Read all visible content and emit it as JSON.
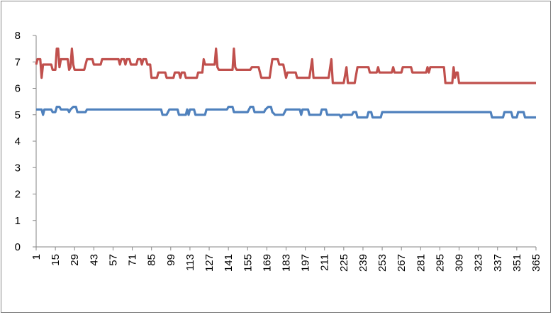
{
  "chart_data": {
    "type": "line",
    "title": "",
    "xlabel": "",
    "ylabel": "",
    "xlim": [
      1,
      365
    ],
    "ylim": [
      0,
      8
    ],
    "y_ticks": [
      0,
      1,
      2,
      3,
      4,
      5,
      6,
      7,
      8
    ],
    "x_ticks": [
      1,
      15,
      29,
      43,
      57,
      71,
      85,
      99,
      113,
      127,
      141,
      155,
      169,
      183,
      197,
      211,
      225,
      239,
      253,
      267,
      281,
      295,
      309,
      323,
      337,
      351,
      365
    ],
    "grid": false,
    "legend": "none",
    "series": [
      {
        "color": "#4f81bd",
        "points": [
          [
            1,
            5.2
          ],
          [
            5,
            5.2
          ],
          [
            6,
            5.0
          ],
          [
            7,
            5.2
          ],
          [
            12,
            5.2
          ],
          [
            13,
            5.1
          ],
          [
            15,
            5.1
          ],
          [
            16,
            5.3
          ],
          [
            18,
            5.3
          ],
          [
            19,
            5.2
          ],
          [
            24,
            5.2
          ],
          [
            25,
            5.1
          ],
          [
            26,
            5.2
          ],
          [
            28,
            5.3
          ],
          [
            30,
            5.3
          ],
          [
            31,
            5.1
          ],
          [
            37,
            5.1
          ],
          [
            38,
            5.2
          ],
          [
            92,
            5.2
          ],
          [
            93,
            5.0
          ],
          [
            96,
            5.0
          ],
          [
            98,
            5.2
          ],
          [
            104,
            5.2
          ],
          [
            105,
            5.0
          ],
          [
            110,
            5.0
          ],
          [
            111,
            5.2
          ],
          [
            112,
            5.0
          ],
          [
            113,
            5.2
          ],
          [
            116,
            5.2
          ],
          [
            117,
            5.0
          ],
          [
            124,
            5.0
          ],
          [
            125,
            5.2
          ],
          [
            140,
            5.2
          ],
          [
            141,
            5.3
          ],
          [
            144,
            5.3
          ],
          [
            145,
            5.1
          ],
          [
            155,
            5.1
          ],
          [
            156,
            5.2
          ],
          [
            157,
            5.3
          ],
          [
            159,
            5.3
          ],
          [
            160,
            5.1
          ],
          [
            167,
            5.1
          ],
          [
            168,
            5.2
          ],
          [
            170,
            5.3
          ],
          [
            172,
            5.3
          ],
          [
            173,
            5.1
          ],
          [
            175,
            5.0
          ],
          [
            181,
            5.0
          ],
          [
            183,
            5.2
          ],
          [
            193,
            5.2
          ],
          [
            194,
            5.0
          ],
          [
            195,
            5.2
          ],
          [
            199,
            5.2
          ],
          [
            200,
            5.0
          ],
          [
            208,
            5.0
          ],
          [
            209,
            5.2
          ],
          [
            212,
            5.2
          ],
          [
            213,
            5.0
          ],
          [
            222,
            5.0
          ],
          [
            223,
            4.9
          ],
          [
            224,
            5.0
          ],
          [
            231,
            5.0
          ],
          [
            232,
            5.1
          ],
          [
            234,
            5.1
          ],
          [
            235,
            4.9
          ],
          [
            242,
            4.9
          ],
          [
            243,
            5.1
          ],
          [
            245,
            5.1
          ],
          [
            246,
            4.9
          ],
          [
            252,
            4.9
          ],
          [
            253,
            5.1
          ],
          [
            332,
            5.1
          ],
          [
            333,
            4.9
          ],
          [
            341,
            4.9
          ],
          [
            342,
            5.1
          ],
          [
            347,
            5.1
          ],
          [
            348,
            4.9
          ],
          [
            351,
            4.9
          ],
          [
            352,
            5.1
          ],
          [
            356,
            5.1
          ],
          [
            357,
            4.9
          ],
          [
            365,
            4.9
          ]
        ]
      },
      {
        "color": "#c0504d",
        "points": [
          [
            1,
            6.9
          ],
          [
            2,
            7.1
          ],
          [
            4,
            7.1
          ],
          [
            5,
            6.4
          ],
          [
            6,
            6.9
          ],
          [
            12,
            6.9
          ],
          [
            13,
            6.7
          ],
          [
            15,
            6.7
          ],
          [
            16,
            7.5
          ],
          [
            17,
            7.5
          ],
          [
            18,
            6.8
          ],
          [
            19,
            7.1
          ],
          [
            24,
            7.1
          ],
          [
            25,
            6.7
          ],
          [
            26,
            6.8
          ],
          [
            27,
            7.5
          ],
          [
            28,
            6.9
          ],
          [
            29,
            6.7
          ],
          [
            36,
            6.7
          ],
          [
            37,
            6.9
          ],
          [
            38,
            7.1
          ],
          [
            42,
            7.1
          ],
          [
            43,
            6.9
          ],
          [
            48,
            6.9
          ],
          [
            49,
            7.1
          ],
          [
            61,
            7.1
          ],
          [
            62,
            6.9
          ],
          [
            63,
            7.1
          ],
          [
            65,
            7.1
          ],
          [
            66,
            6.9
          ],
          [
            67,
            7.1
          ],
          [
            69,
            7.1
          ],
          [
            70,
            6.9
          ],
          [
            74,
            6.9
          ],
          [
            75,
            7.1
          ],
          [
            77,
            7.1
          ],
          [
            78,
            6.9
          ],
          [
            79,
            7.1
          ],
          [
            81,
            7.1
          ],
          [
            82,
            6.9
          ],
          [
            84,
            6.9
          ],
          [
            85,
            6.4
          ],
          [
            89,
            6.4
          ],
          [
            90,
            6.6
          ],
          [
            95,
            6.6
          ],
          [
            96,
            6.4
          ],
          [
            101,
            6.4
          ],
          [
            102,
            6.6
          ],
          [
            105,
            6.6
          ],
          [
            106,
            6.4
          ],
          [
            107,
            6.6
          ],
          [
            109,
            6.6
          ],
          [
            110,
            6.4
          ],
          [
            118,
            6.4
          ],
          [
            119,
            6.6
          ],
          [
            122,
            6.6
          ],
          [
            123,
            7.1
          ],
          [
            124,
            6.9
          ],
          [
            131,
            6.9
          ],
          [
            132,
            7.5
          ],
          [
            133,
            6.8
          ],
          [
            134,
            6.7
          ],
          [
            144,
            6.7
          ],
          [
            145,
            7.5
          ],
          [
            146,
            6.8
          ],
          [
            147,
            6.7
          ],
          [
            157,
            6.7
          ],
          [
            158,
            6.8
          ],
          [
            163,
            6.8
          ],
          [
            165,
            6.4
          ],
          [
            171,
            6.4
          ],
          [
            173,
            7.1
          ],
          [
            177,
            7.1
          ],
          [
            178,
            6.9
          ],
          [
            181,
            6.9
          ],
          [
            183,
            6.4
          ],
          [
            184,
            6.6
          ],
          [
            190,
            6.6
          ],
          [
            191,
            6.4
          ],
          [
            200,
            6.4
          ],
          [
            202,
            7.1
          ],
          [
            203,
            6.4
          ],
          [
            214,
            6.4
          ],
          [
            216,
            7.1
          ],
          [
            217,
            6.2
          ],
          [
            225,
            6.2
          ],
          [
            227,
            6.8
          ],
          [
            228,
            6.2
          ],
          [
            233,
            6.2
          ],
          [
            235,
            6.8
          ],
          [
            243,
            6.8
          ],
          [
            244,
            6.6
          ],
          [
            249,
            6.6
          ],
          [
            250,
            6.8
          ],
          [
            251,
            6.6
          ],
          [
            260,
            6.6
          ],
          [
            261,
            6.8
          ],
          [
            262,
            6.6
          ],
          [
            267,
            6.6
          ],
          [
            268,
            6.8
          ],
          [
            274,
            6.8
          ],
          [
            275,
            6.6
          ],
          [
            285,
            6.6
          ],
          [
            286,
            6.8
          ],
          [
            287,
            6.6
          ],
          [
            288,
            6.8
          ],
          [
            298,
            6.8
          ],
          [
            299,
            6.2
          ],
          [
            304,
            6.2
          ],
          [
            305,
            6.8
          ],
          [
            306,
            6.4
          ],
          [
            307,
            6.6
          ],
          [
            308,
            6.6
          ],
          [
            309,
            6.2
          ],
          [
            365,
            6.2
          ]
        ]
      }
    ]
  }
}
